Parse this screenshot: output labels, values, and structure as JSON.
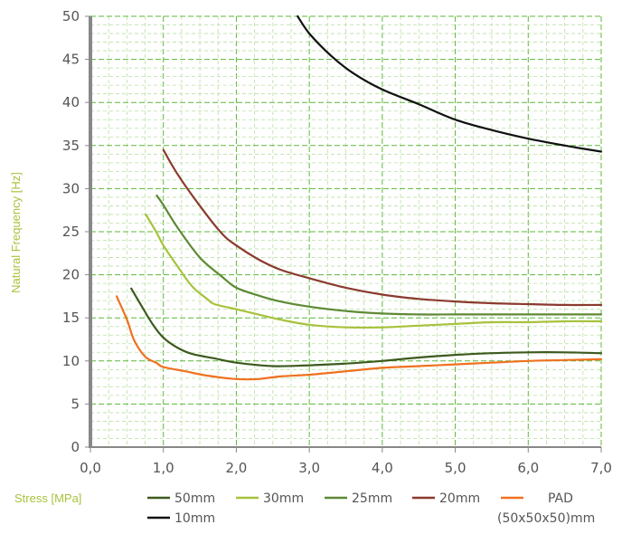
{
  "chart_data": {
    "type": "line",
    "title": "",
    "xlabel": "Stress [MPa]",
    "ylabel": "Natural Frequency [Hz]",
    "xlim": [
      0,
      7
    ],
    "ylim": [
      0,
      50
    ],
    "x_ticks": [
      "0,0",
      "1,0",
      "2,0",
      "3,0",
      "4,0",
      "5,0",
      "6,0",
      "7,0"
    ],
    "y_ticks": [
      "0",
      "5",
      "10",
      "15",
      "20",
      "25",
      "30",
      "35",
      "40",
      "45",
      "50"
    ],
    "grid": true,
    "legend_position": "bottom",
    "series": [
      {
        "name": "50mm",
        "color": "#3d5a1e",
        "points": [
          [
            0.56,
            18.4
          ],
          [
            0.7,
            16.4
          ],
          [
            0.85,
            14.3
          ],
          [
            1.0,
            12.7
          ],
          [
            1.2,
            11.5
          ],
          [
            1.4,
            10.8
          ],
          [
            1.7,
            10.3
          ],
          [
            2.0,
            9.8
          ],
          [
            2.5,
            9.4
          ],
          [
            3.0,
            9.5
          ],
          [
            3.5,
            9.7
          ],
          [
            4.0,
            10.0
          ],
          [
            4.5,
            10.4
          ],
          [
            5.0,
            10.7
          ],
          [
            5.5,
            10.9
          ],
          [
            6.0,
            11.0
          ],
          [
            6.5,
            11.0
          ],
          [
            7.0,
            10.9
          ]
        ]
      },
      {
        "name": "30mm",
        "color": "#a8c23c",
        "points": [
          [
            0.76,
            27.0
          ],
          [
            0.9,
            25.0
          ],
          [
            1.0,
            23.4
          ],
          [
            1.2,
            20.9
          ],
          [
            1.4,
            18.6
          ],
          [
            1.6,
            17.2
          ],
          [
            1.7,
            16.6
          ],
          [
            2.0,
            16.0
          ],
          [
            2.3,
            15.4
          ],
          [
            2.6,
            14.8
          ],
          [
            3.0,
            14.2
          ],
          [
            3.5,
            13.9
          ],
          [
            4.0,
            13.9
          ],
          [
            4.5,
            14.1
          ],
          [
            5.0,
            14.3
          ],
          [
            5.5,
            14.5
          ],
          [
            6.0,
            14.5
          ],
          [
            6.5,
            14.6
          ],
          [
            7.0,
            14.6
          ]
        ]
      },
      {
        "name": "25mm",
        "color": "#5e8a34",
        "points": [
          [
            0.91,
            29.2
          ],
          [
            1.0,
            28.1
          ],
          [
            1.2,
            25.4
          ],
          [
            1.5,
            22.0
          ],
          [
            1.8,
            19.8
          ],
          [
            2.0,
            18.5
          ],
          [
            2.3,
            17.6
          ],
          [
            2.6,
            16.9
          ],
          [
            3.0,
            16.3
          ],
          [
            3.5,
            15.8
          ],
          [
            4.0,
            15.5
          ],
          [
            4.5,
            15.4
          ],
          [
            5.0,
            15.4
          ],
          [
            5.5,
            15.4
          ],
          [
            6.0,
            15.4
          ],
          [
            6.5,
            15.4
          ],
          [
            7.0,
            15.4
          ]
        ]
      },
      {
        "name": "20mm",
        "color": "#8b3a2e",
        "points": [
          [
            1.0,
            34.5
          ],
          [
            1.2,
            31.6
          ],
          [
            1.5,
            28.0
          ],
          [
            1.8,
            24.8
          ],
          [
            2.0,
            23.4
          ],
          [
            2.3,
            21.8
          ],
          [
            2.6,
            20.6
          ],
          [
            3.0,
            19.6
          ],
          [
            3.5,
            18.5
          ],
          [
            4.0,
            17.7
          ],
          [
            4.5,
            17.2
          ],
          [
            5.0,
            16.9
          ],
          [
            5.5,
            16.7
          ],
          [
            6.0,
            16.6
          ],
          [
            6.5,
            16.5
          ],
          [
            7.0,
            16.5
          ]
        ]
      },
      {
        "name": "PAD\n(50x50x50)mm",
        "color": "#f0711f",
        "points": [
          [
            0.36,
            17.5
          ],
          [
            0.5,
            14.8
          ],
          [
            0.6,
            12.4
          ],
          [
            0.75,
            10.5
          ],
          [
            0.9,
            9.8
          ],
          [
            1.0,
            9.3
          ],
          [
            1.3,
            8.8
          ],
          [
            1.6,
            8.3
          ],
          [
            2.0,
            7.9
          ],
          [
            2.3,
            7.9
          ],
          [
            2.6,
            8.2
          ],
          [
            3.0,
            8.4
          ],
          [
            3.5,
            8.8
          ],
          [
            4.0,
            9.2
          ],
          [
            4.5,
            9.4
          ],
          [
            5.0,
            9.6
          ],
          [
            5.5,
            9.8
          ],
          [
            6.0,
            10.0
          ],
          [
            6.5,
            10.1
          ],
          [
            7.0,
            10.2
          ]
        ]
      },
      {
        "name": "10mm",
        "color": "#111111",
        "points": [
          [
            2.84,
            50.0
          ],
          [
            3.0,
            48.0
          ],
          [
            3.3,
            45.4
          ],
          [
            3.6,
            43.4
          ],
          [
            4.0,
            41.5
          ],
          [
            4.5,
            39.8
          ],
          [
            5.0,
            38.0
          ],
          [
            5.5,
            36.8
          ],
          [
            6.0,
            35.8
          ],
          [
            6.5,
            35.0
          ],
          [
            7.0,
            34.3
          ]
        ]
      }
    ]
  }
}
